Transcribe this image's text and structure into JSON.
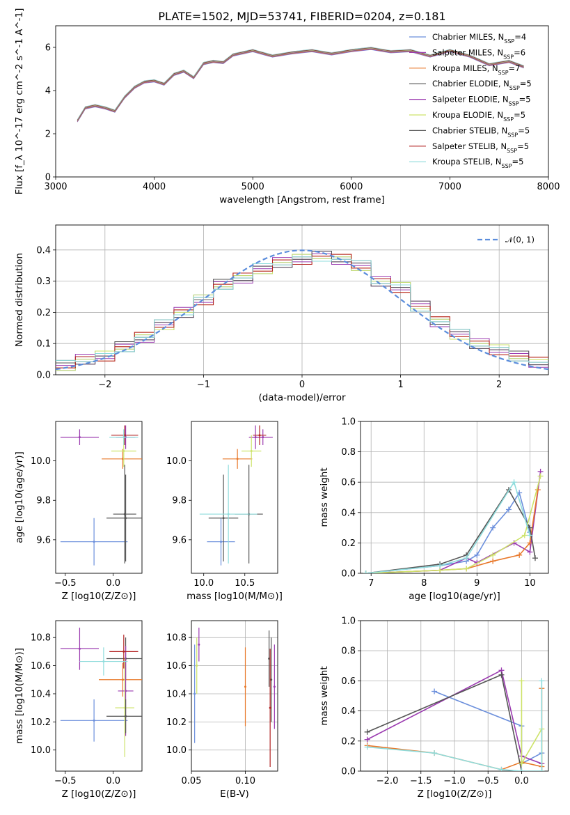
{
  "figure_title": "PLATE=1502, MJD=53741, FIBERID=0204, z=0.181",
  "models": [
    {
      "name": "Chabrier MILES",
      "nssp": "4",
      "color": "#6b8fdc"
    },
    {
      "name": "Salpeter MILES",
      "nssp": "6",
      "color": "#9b3bb0"
    },
    {
      "name": "Kroupa MILES",
      "nssp": "7",
      "color": "#e8782a"
    },
    {
      "name": "Chabrier ELODIE",
      "nssp": "5",
      "color": "#555555"
    },
    {
      "name": "Salpeter ELODIE",
      "nssp": "5",
      "color": "#9b3bb0"
    },
    {
      "name": "Kroupa ELODIE",
      "nssp": "5",
      "color": "#cde36a"
    },
    {
      "name": "Chabrier STELIB",
      "nssp": "5",
      "color": "#555555"
    },
    {
      "name": "Salpeter STELIB",
      "nssp": "5",
      "color": "#b22222"
    },
    {
      "name": "Kroupa STELIB",
      "nssp": "5",
      "color": "#8fdcdc"
    }
  ],
  "chart_data": [
    {
      "id": "spectrum",
      "type": "line",
      "xlabel": "wavelength [Angstrom, rest frame]",
      "ylabel": "Flux [f_λ 10^-17 erg cm^-2 s^-1 A^-1]",
      "xlim": [
        3000,
        8000
      ],
      "ylim": [
        0,
        7
      ],
      "xticks": [
        "3000",
        "4000",
        "5000",
        "6000",
        "7000",
        "8000"
      ],
      "yticks": [
        "0",
        "2",
        "4",
        "6"
      ],
      "legend_position": "right",
      "data_x": [
        3220,
        3300,
        3400,
        3500,
        3600,
        3700,
        3800,
        3900,
        4000,
        4100,
        4200,
        4300,
        4400,
        4500,
        4600,
        4700,
        4800,
        4900,
        5000,
        5200,
        5400,
        5600,
        5800,
        6000,
        6200,
        6400,
        6600,
        6800,
        7000,
        7200,
        7400,
        7600,
        7750
      ],
      "data_y": [
        2.6,
        3.2,
        3.3,
        3.2,
        3.0,
        3.7,
        4.2,
        4.4,
        4.5,
        4.3,
        4.8,
        4.9,
        4.6,
        5.3,
        5.4,
        5.3,
        5.7,
        5.8,
        5.9,
        5.6,
        5.8,
        5.9,
        5.7,
        5.9,
        6.0,
        5.8,
        5.9,
        5.6,
        5.9,
        5.6,
        5.2,
        5.4,
        5.1
      ],
      "model_y": [
        2.6,
        3.2,
        3.3,
        3.2,
        3.05,
        3.7,
        4.15,
        4.4,
        4.45,
        4.3,
        4.75,
        4.9,
        4.6,
        5.25,
        5.35,
        5.3,
        5.65,
        5.75,
        5.85,
        5.6,
        5.75,
        5.85,
        5.7,
        5.85,
        5.95,
        5.8,
        5.85,
        5.6,
        5.85,
        5.6,
        5.2,
        5.35,
        5.1
      ]
    },
    {
      "id": "residuals",
      "type": "line",
      "xlabel": "(data-model)/error",
      "ylabel": "Normed distribution",
      "xlim": [
        -2.5,
        2.5
      ],
      "ylim": [
        0,
        0.48
      ],
      "xticks": [
        "−2",
        "−1",
        "0",
        "1",
        "2"
      ],
      "yticks": [
        "0.0",
        "0.1",
        "0.2",
        "0.3",
        "0.4"
      ],
      "legend_position": "top-right",
      "legend_label": "𝒩(0, 1)",
      "normal_curve": {
        "mean": 0,
        "sigma": 1
      },
      "histogram_edges": [
        -2.5,
        -2.3,
        -2.1,
        -1.9,
        -1.7,
        -1.5,
        -1.3,
        -1.1,
        -0.9,
        -0.7,
        -0.5,
        -0.3,
        -0.1,
        0.1,
        0.3,
        0.5,
        0.7,
        0.9,
        1.1,
        1.3,
        1.5,
        1.7,
        1.9,
        2.1,
        2.3,
        2.5
      ],
      "histogram_values": [
        0.03,
        0.05,
        0.06,
        0.09,
        0.12,
        0.16,
        0.2,
        0.24,
        0.29,
        0.31,
        0.34,
        0.36,
        0.37,
        0.38,
        0.37,
        0.35,
        0.3,
        0.28,
        0.22,
        0.17,
        0.13,
        0.1,
        0.08,
        0.06,
        0.04
      ]
    },
    {
      "id": "age-vs-Z",
      "type": "scatter",
      "xlabel": "Z [log10(Z/Z⊙)]",
      "ylabel": "age [log10(age/yr)]",
      "xlim": [
        -0.6,
        0.3
      ],
      "ylim": [
        9.43,
        10.2
      ],
      "xticks": [
        "−0.5",
        "0.0"
      ],
      "yticks": [
        "9.6",
        "9.8",
        "10.0"
      ],
      "points": [
        {
          "x": -0.2,
          "y": 9.59,
          "xerr": 0.35,
          "yerr": 0.12
        },
        {
          "x": -0.35,
          "y": 10.12,
          "xerr": 0.2,
          "yerr": 0.04
        },
        {
          "x": 0.1,
          "y": 10.01,
          "xerr": 0.22,
          "yerr": 0.05
        },
        {
          "x": 0.12,
          "y": 9.73,
          "xerr": 0.12,
          "yerr": 0.25
        },
        {
          "x": 0.13,
          "y": 10.12,
          "xerr": 0.1,
          "yerr": 0.06
        },
        {
          "x": 0.11,
          "y": 10.05,
          "xerr": 0.13,
          "yerr": 0.08
        },
        {
          "x": 0.13,
          "y": 9.71,
          "xerr": 0.2,
          "yerr": 0.22
        },
        {
          "x": 0.12,
          "y": 10.13,
          "xerr": 0.14,
          "yerr": 0.05
        },
        {
          "x": 0.11,
          "y": 10.12,
          "xerr": 0.15,
          "yerr": 0.04
        }
      ]
    },
    {
      "id": "age-vs-mass",
      "type": "scatter",
      "xlabel": "mass [log10(M/M⊙)]",
      "ylabel": "",
      "xlim": [
        9.85,
        10.9
      ],
      "ylim": [
        9.43,
        10.2
      ],
      "xticks": [
        "10.0",
        "10.5"
      ],
      "yticks": [
        "9.6",
        "9.8",
        "10.0"
      ],
      "points": [
        {
          "x": 10.21,
          "y": 9.59,
          "xerr": 0.17,
          "yerr": 0.12
        },
        {
          "x": 10.72,
          "y": 10.12,
          "xerr": 0.12,
          "yerr": 0.04
        },
        {
          "x": 10.41,
          "y": 10.01,
          "xerr": 0.18,
          "yerr": 0.05
        },
        {
          "x": 10.55,
          "y": 9.73,
          "xerr": 0.17,
          "yerr": 0.25
        },
        {
          "x": 10.63,
          "y": 10.12,
          "xerr": 0.08,
          "yerr": 0.06
        },
        {
          "x": 10.58,
          "y": 10.05,
          "xerr": 0.12,
          "yerr": 0.08
        },
        {
          "x": 10.24,
          "y": 9.71,
          "xerr": 0.18,
          "yerr": 0.22
        },
        {
          "x": 10.68,
          "y": 10.13,
          "xerr": 0.08,
          "yerr": 0.05
        },
        {
          "x": 10.3,
          "y": 9.73,
          "xerr": 0.35,
          "yerr": 0.25
        }
      ]
    },
    {
      "id": "mass-weight-vs-age",
      "type": "line",
      "xlabel": "age [log10(age/yr)]",
      "ylabel": "mass weight",
      "xlim": [
        6.8,
        10.35
      ],
      "ylim": [
        0,
        1.0
      ],
      "xticks": [
        "7",
        "8",
        "9",
        "10"
      ],
      "yticks": [
        "0.0",
        "0.2",
        "0.4",
        "0.6",
        "0.8",
        "1.0"
      ],
      "series": [
        {
          "values_x": [
            6.9,
            8.3,
            8.8,
            9.0,
            9.3,
            9.6,
            9.8,
            10.0
          ],
          "values_y": [
            0.0,
            0.05,
            0.08,
            0.12,
            0.3,
            0.42,
            0.53,
            0.27
          ]
        },
        {
          "values_x": [
            6.9,
            8.3,
            8.8,
            9.0,
            9.7,
            10.0,
            10.2
          ],
          "values_y": [
            0.0,
            0.02,
            0.1,
            0.07,
            0.2,
            0.14,
            0.67
          ]
        },
        {
          "values_x": [
            6.9,
            8.3,
            8.8,
            9.3,
            9.8,
            10.0,
            10.15
          ],
          "values_y": [
            0.0,
            0.02,
            0.03,
            0.08,
            0.12,
            0.2,
            0.55
          ]
        },
        {
          "values_x": [
            6.9,
            8.3,
            8.8,
            9.6,
            10.0,
            10.1
          ],
          "values_y": [
            0.0,
            0.06,
            0.12,
            0.55,
            0.3,
            0.1
          ]
        },
        {
          "values_x": [
            6.9,
            8.3,
            8.8,
            9.3,
            9.9,
            10.2
          ],
          "values_y": [
            0.0,
            0.02,
            0.03,
            0.12,
            0.25,
            0.64
          ]
        },
        {
          "values_x": [
            6.9,
            8.3,
            8.8,
            9.7,
            10.0
          ],
          "values_y": [
            0.0,
            0.05,
            0.1,
            0.6,
            0.25
          ]
        }
      ]
    },
    {
      "id": "mass-vs-Z",
      "type": "scatter",
      "xlabel": "Z [log10(Z/Z⊙)]",
      "ylabel": "mass [log10(M/M⊙)]",
      "xlim": [
        -0.6,
        0.3
      ],
      "ylim": [
        9.85,
        10.92
      ],
      "xticks": [
        "−0.5",
        "0.0"
      ],
      "yticks": [
        "10.0",
        "10.2",
        "10.4",
        "10.6",
        "10.8"
      ],
      "points": [
        {
          "x": -0.2,
          "y": 10.21,
          "xerr": 0.35,
          "yerr": 0.15
        },
        {
          "x": -0.35,
          "y": 10.72,
          "xerr": 0.2,
          "yerr": 0.15
        },
        {
          "x": 0.1,
          "y": 10.5,
          "xerr": 0.25,
          "yerr": 0.12
        },
        {
          "x": 0.13,
          "y": 10.65,
          "xerr": 0.2,
          "yerr": 0.15
        },
        {
          "x": 0.13,
          "y": 10.42,
          "xerr": 0.08,
          "yerr": 0.32
        },
        {
          "x": 0.12,
          "y": 10.3,
          "xerr": 0.1,
          "yerr": 0.35
        },
        {
          "x": 0.13,
          "y": 10.24,
          "xerr": 0.2,
          "yerr": 0.12
        },
        {
          "x": 0.11,
          "y": 10.7,
          "xerr": 0.15,
          "yerr": 0.12
        },
        {
          "x": -0.1,
          "y": 10.63,
          "xerr": 0.25,
          "yerr": 0.1
        }
      ]
    },
    {
      "id": "mass-vs-EBV",
      "type": "scatter",
      "xlabel": "E(B-V)",
      "ylabel": "",
      "xlim": [
        0.05,
        0.13
      ],
      "ylim": [
        9.85,
        10.92
      ],
      "xticks": [
        "0.05",
        "0.10"
      ],
      "yticks": [
        "10.0",
        "10.2",
        "10.4",
        "10.6",
        "10.8"
      ],
      "points": [
        {
          "x": 0.053,
          "y": 10.4,
          "yerr": 0.35
        },
        {
          "x": 0.057,
          "y": 10.75,
          "yerr": 0.12
        },
        {
          "x": 0.1,
          "y": 10.45,
          "yerr": 0.28
        },
        {
          "x": 0.124,
          "y": 10.5,
          "yerr": 0.3
        },
        {
          "x": 0.127,
          "y": 10.45,
          "yerr": 0.3
        },
        {
          "x": 0.055,
          "y": 10.6,
          "yerr": 0.2
        },
        {
          "x": 0.122,
          "y": 10.65,
          "yerr": 0.2
        },
        {
          "x": 0.123,
          "y": 10.3,
          "yerr": 0.42
        }
      ]
    },
    {
      "id": "mass-weight-vs-Z",
      "type": "line",
      "xlabel": "Z [log10(Z/Z⊙)]",
      "ylabel": "mass weight",
      "xlim": [
        -2.4,
        0.4
      ],
      "ylim": [
        0,
        1.0
      ],
      "xticks": [
        "−2.0",
        "−1.5",
        "−1.0",
        "−0.5",
        "0.0"
      ],
      "yticks": [
        "0.0",
        "0.2",
        "0.4",
        "0.6",
        "0.8",
        "1.0"
      ],
      "series": [
        {
          "values_x": [
            -1.3,
            0.0,
            0.0,
            0.3,
            0.3
          ],
          "values_y": [
            0.53,
            0.3,
            0.05,
            0.12,
            0.0
          ]
        },
        {
          "values_x": [
            -2.3,
            -0.3,
            0.0,
            0.3,
            0.3
          ],
          "values_y": [
            0.21,
            0.67,
            0.1,
            0.05,
            0.0
          ]
        },
        {
          "values_x": [
            -2.3,
            -1.3,
            -0.3,
            0.0,
            0.3,
            0.3
          ],
          "values_y": [
            0.17,
            0.12,
            0.01,
            0.06,
            0.03,
            0.55
          ]
        },
        {
          "values_x": [
            -2.3,
            -0.3,
            0.0,
            0.3
          ],
          "values_y": [
            0.26,
            0.64,
            0.0,
            0.0
          ]
        },
        {
          "values_x": [
            0.0,
            0.0,
            0.3,
            0.3
          ],
          "values_y": [
            0.6,
            0.05,
            0.28,
            0.0
          ]
        },
        {
          "values_x": [
            -2.3,
            -1.3,
            -0.3,
            0.0,
            0.3,
            0.3
          ],
          "values_y": [
            0.16,
            0.12,
            0.01,
            0.0,
            0.0,
            0.6
          ]
        }
      ]
    }
  ]
}
